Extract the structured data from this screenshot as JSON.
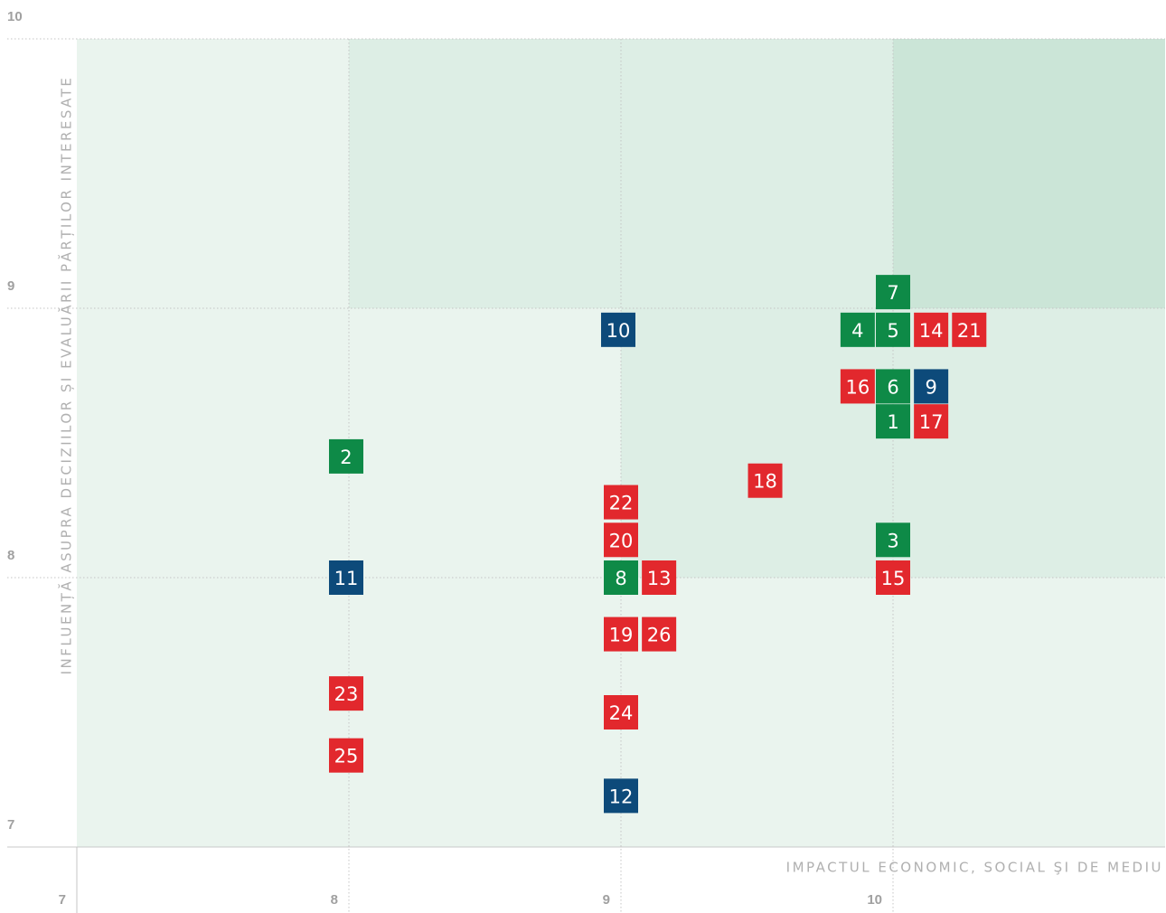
{
  "chart_data": {
    "type": "scatter",
    "x_label": "IMPACTUL ECONOMIC, SOCIAL ŞI DE MEDIU",
    "y_label": "INFLUENȚĂ ASUPRA DECIZIILOR ȘI EVALUĂRII PĂRȚILOR INTERESATE",
    "xlim": [
      7,
      11
    ],
    "xticks": [
      7,
      8,
      9,
      10
    ],
    "ylim": [
      7,
      10
    ],
    "yticks": [
      7,
      8,
      9,
      10
    ],
    "grid": true,
    "points": [
      {
        "label": "7",
        "x": 10.0,
        "y": 9.06,
        "color": "#0e8a47"
      },
      {
        "label": "4",
        "x": 9.87,
        "y": 8.92,
        "color": "#0e8a47"
      },
      {
        "label": "5",
        "x": 10.0,
        "y": 8.92,
        "color": "#0e8a47"
      },
      {
        "label": "14",
        "x": 10.14,
        "y": 8.92,
        "color": "#e2282d"
      },
      {
        "label": "21",
        "x": 10.28,
        "y": 8.92,
        "color": "#e2282d"
      },
      {
        "label": "10",
        "x": 8.99,
        "y": 8.92,
        "color": "#0d4a7a"
      },
      {
        "label": "16",
        "x": 9.87,
        "y": 8.71,
        "color": "#e2282d"
      },
      {
        "label": "6",
        "x": 10.0,
        "y": 8.71,
        "color": "#0e8a47"
      },
      {
        "label": "9",
        "x": 10.14,
        "y": 8.71,
        "color": "#0d4a7a"
      },
      {
        "label": "1",
        "x": 10.0,
        "y": 8.58,
        "color": "#0e8a47"
      },
      {
        "label": "17",
        "x": 10.14,
        "y": 8.58,
        "color": "#e2282d"
      },
      {
        "label": "2",
        "x": 7.99,
        "y": 8.45,
        "color": "#0e8a47"
      },
      {
        "label": "18",
        "x": 9.53,
        "y": 8.36,
        "color": "#e2282d"
      },
      {
        "label": "22",
        "x": 9.0,
        "y": 8.28,
        "color": "#e2282d"
      },
      {
        "label": "20",
        "x": 9.0,
        "y": 8.14,
        "color": "#e2282d"
      },
      {
        "label": "3",
        "x": 10.0,
        "y": 8.14,
        "color": "#0e8a47"
      },
      {
        "label": "8",
        "x": 9.0,
        "y": 8.0,
        "color": "#0e8a47"
      },
      {
        "label": "13",
        "x": 9.14,
        "y": 8.0,
        "color": "#e2282d"
      },
      {
        "label": "11",
        "x": 7.99,
        "y": 8.0,
        "color": "#0d4a7a"
      },
      {
        "label": "15",
        "x": 10.0,
        "y": 8.0,
        "color": "#e2282d"
      },
      {
        "label": "19",
        "x": 9.0,
        "y": 7.79,
        "color": "#e2282d"
      },
      {
        "label": "26",
        "x": 9.14,
        "y": 7.79,
        "color": "#e2282d"
      },
      {
        "label": "23",
        "x": 7.99,
        "y": 7.57,
        "color": "#e2282d"
      },
      {
        "label": "24",
        "x": 9.0,
        "y": 7.5,
        "color": "#e2282d"
      },
      {
        "label": "25",
        "x": 7.99,
        "y": 7.34,
        "color": "#e2282d"
      },
      {
        "label": "12",
        "x": 9.0,
        "y": 7.19,
        "color": "#0d4a7a"
      }
    ]
  }
}
